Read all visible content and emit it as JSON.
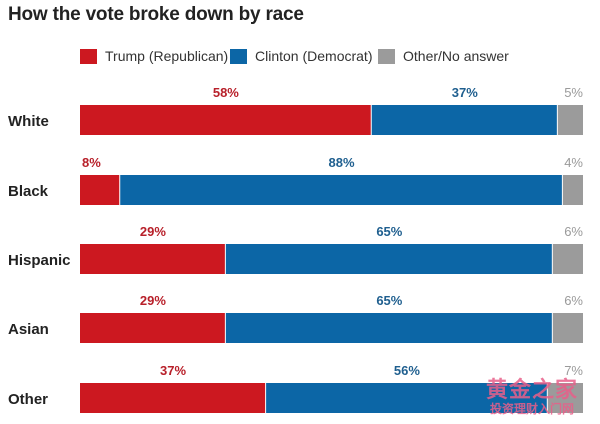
{
  "chart_data": {
    "type": "bar",
    "orientation": "horizontal",
    "stacked": true,
    "title": "How the vote broke down by race",
    "xlabel": "",
    "ylabel": "",
    "xlim": [
      0,
      100
    ],
    "grid": false,
    "legend_position": "top",
    "categories": [
      "White",
      "Black",
      "Hispanic",
      "Asian",
      "Other"
    ],
    "series": [
      {
        "name": "Trump (Republican)",
        "color": "#cc1820",
        "label_color": "#b8202a",
        "values": [
          58,
          8,
          29,
          29,
          37
        ],
        "labels": [
          "58%",
          "8%",
          "29%",
          "29%",
          "37%"
        ]
      },
      {
        "name": "Clinton (Democrat)",
        "color": "#0c66a6",
        "label_color": "#1f5f8f",
        "values": [
          37,
          88,
          65,
          65,
          56
        ],
        "labels": [
          "37%",
          "88%",
          "65%",
          "65%",
          "56%"
        ]
      },
      {
        "name": "Other/No answer",
        "color": "#9b9b9b",
        "label_color": "#9a9a9a",
        "values": [
          5,
          4,
          6,
          6,
          7
        ],
        "labels": [
          "5%",
          "4%",
          "6%",
          "6%",
          "7%"
        ]
      }
    ]
  },
  "watermark": {
    "line1": "黄金之家",
    "line2": "投资理财入门网"
  }
}
